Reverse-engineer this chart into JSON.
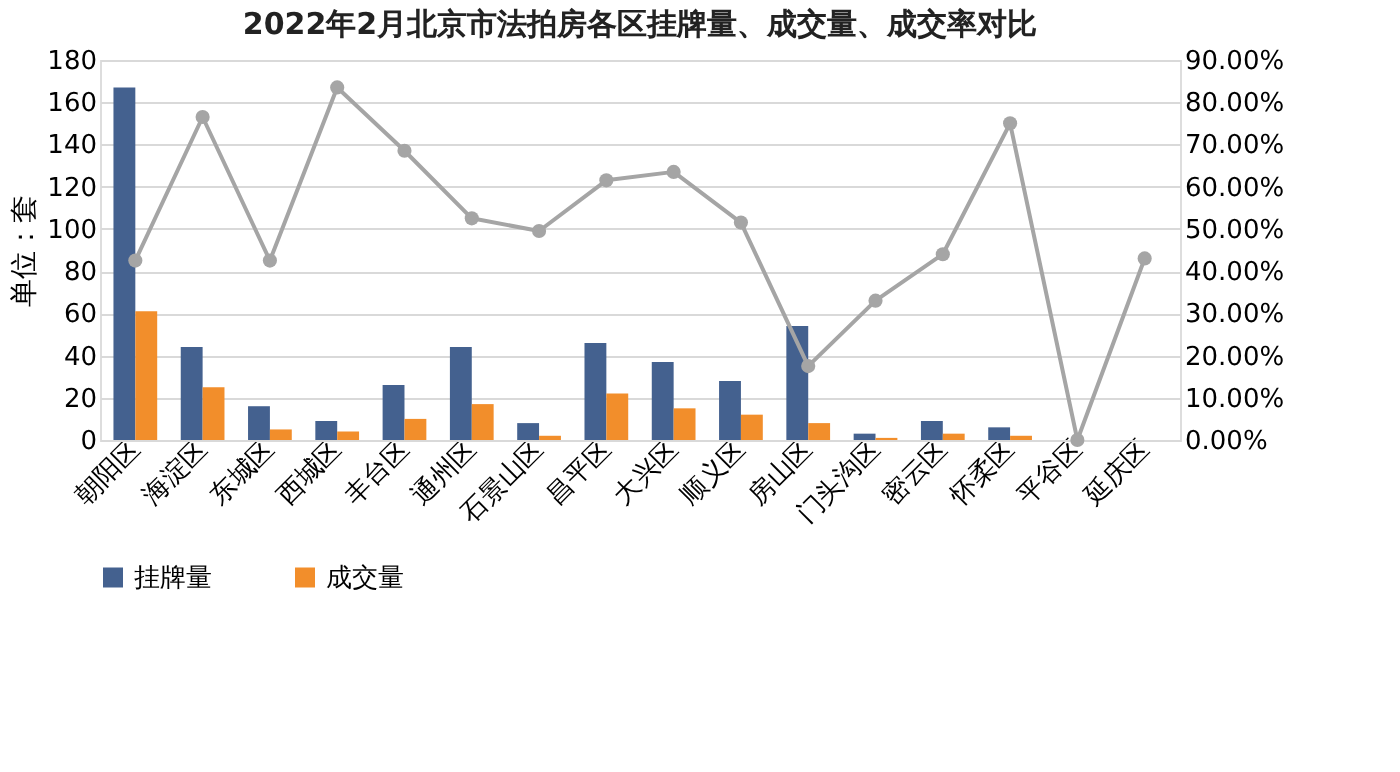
{
  "chart_data": {
    "type": "bar",
    "title": "2022年2月北京市法拍房各区挂牌量、成交量、成交率对比",
    "ylabel": "单位：套",
    "categories": [
      "朝阳区",
      "海淀区",
      "东城区",
      "西城区",
      "丰台区",
      "通州区",
      "石景山区",
      "昌平区",
      "大兴区",
      "顺义区",
      "房山区",
      "门头沟区",
      "密云区",
      "怀柔区",
      "平谷区",
      "延庆区"
    ],
    "series": [
      {
        "name": "挂牌量",
        "color": "#44618f",
        "values": [
          167,
          44,
          16,
          9,
          26,
          44,
          8,
          46,
          37,
          28,
          54,
          3,
          9,
          6,
          0,
          null
        ]
      },
      {
        "name": "成交量",
        "color": "#f28e2b",
        "values": [
          61,
          25,
          5,
          4,
          10,
          17,
          2,
          22,
          15,
          12,
          8,
          1,
          3,
          2,
          0,
          null
        ]
      },
      {
        "type": "line",
        "axis": "y2",
        "color": "#a5a5a5",
        "marker": "circle",
        "values": [
          42.5,
          76.5,
          42.5,
          83.5,
          68.5,
          52.5,
          49.5,
          61.5,
          63.5,
          51.5,
          17.5,
          33,
          44,
          75,
          0,
          43
        ]
      }
    ],
    "ylim": [
      0,
      180
    ],
    "yticks": [
      0,
      20,
      40,
      60,
      80,
      100,
      120,
      140,
      160,
      180
    ],
    "y2lim": [
      0,
      90
    ],
    "y2ticks": [
      {
        "value": 0,
        "label": "0.00%"
      },
      {
        "value": 10,
        "label": "10.00%"
      },
      {
        "value": 20,
        "label": "20.00%"
      },
      {
        "value": 30,
        "label": "30.00%"
      },
      {
        "value": 40,
        "label": "40.00%"
      },
      {
        "value": 50,
        "label": "50.00%"
      },
      {
        "value": 60,
        "label": "60.00%"
      },
      {
        "value": 70,
        "label": "70.00%"
      },
      {
        "value": 80,
        "label": "80.00%"
      },
      {
        "value": 90,
        "label": "90.00%"
      }
    ],
    "grid": "y",
    "legend": "bottom"
  }
}
